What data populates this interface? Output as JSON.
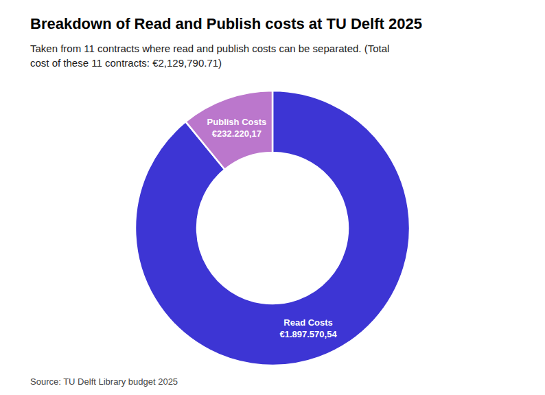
{
  "chart_data": {
    "type": "pie",
    "title": "Breakdown of Read and Publish costs at TU Delft 2025",
    "subtitle": "Taken from 11 contracts where read and publish costs can be separated. (Total\ncost of these 11 contracts: €2,129,790.71)",
    "source": "Source: TU Delft Library budget 2025",
    "categories": [
      "Read Costs",
      "Publish Costs"
    ],
    "values": [
      1897570.54,
      232220.17
    ],
    "value_labels": [
      "€1.897.570,54",
      "€232.220,17"
    ],
    "colors": [
      "#3d35d4",
      "#bb77cc"
    ],
    "data_labels": true
  }
}
